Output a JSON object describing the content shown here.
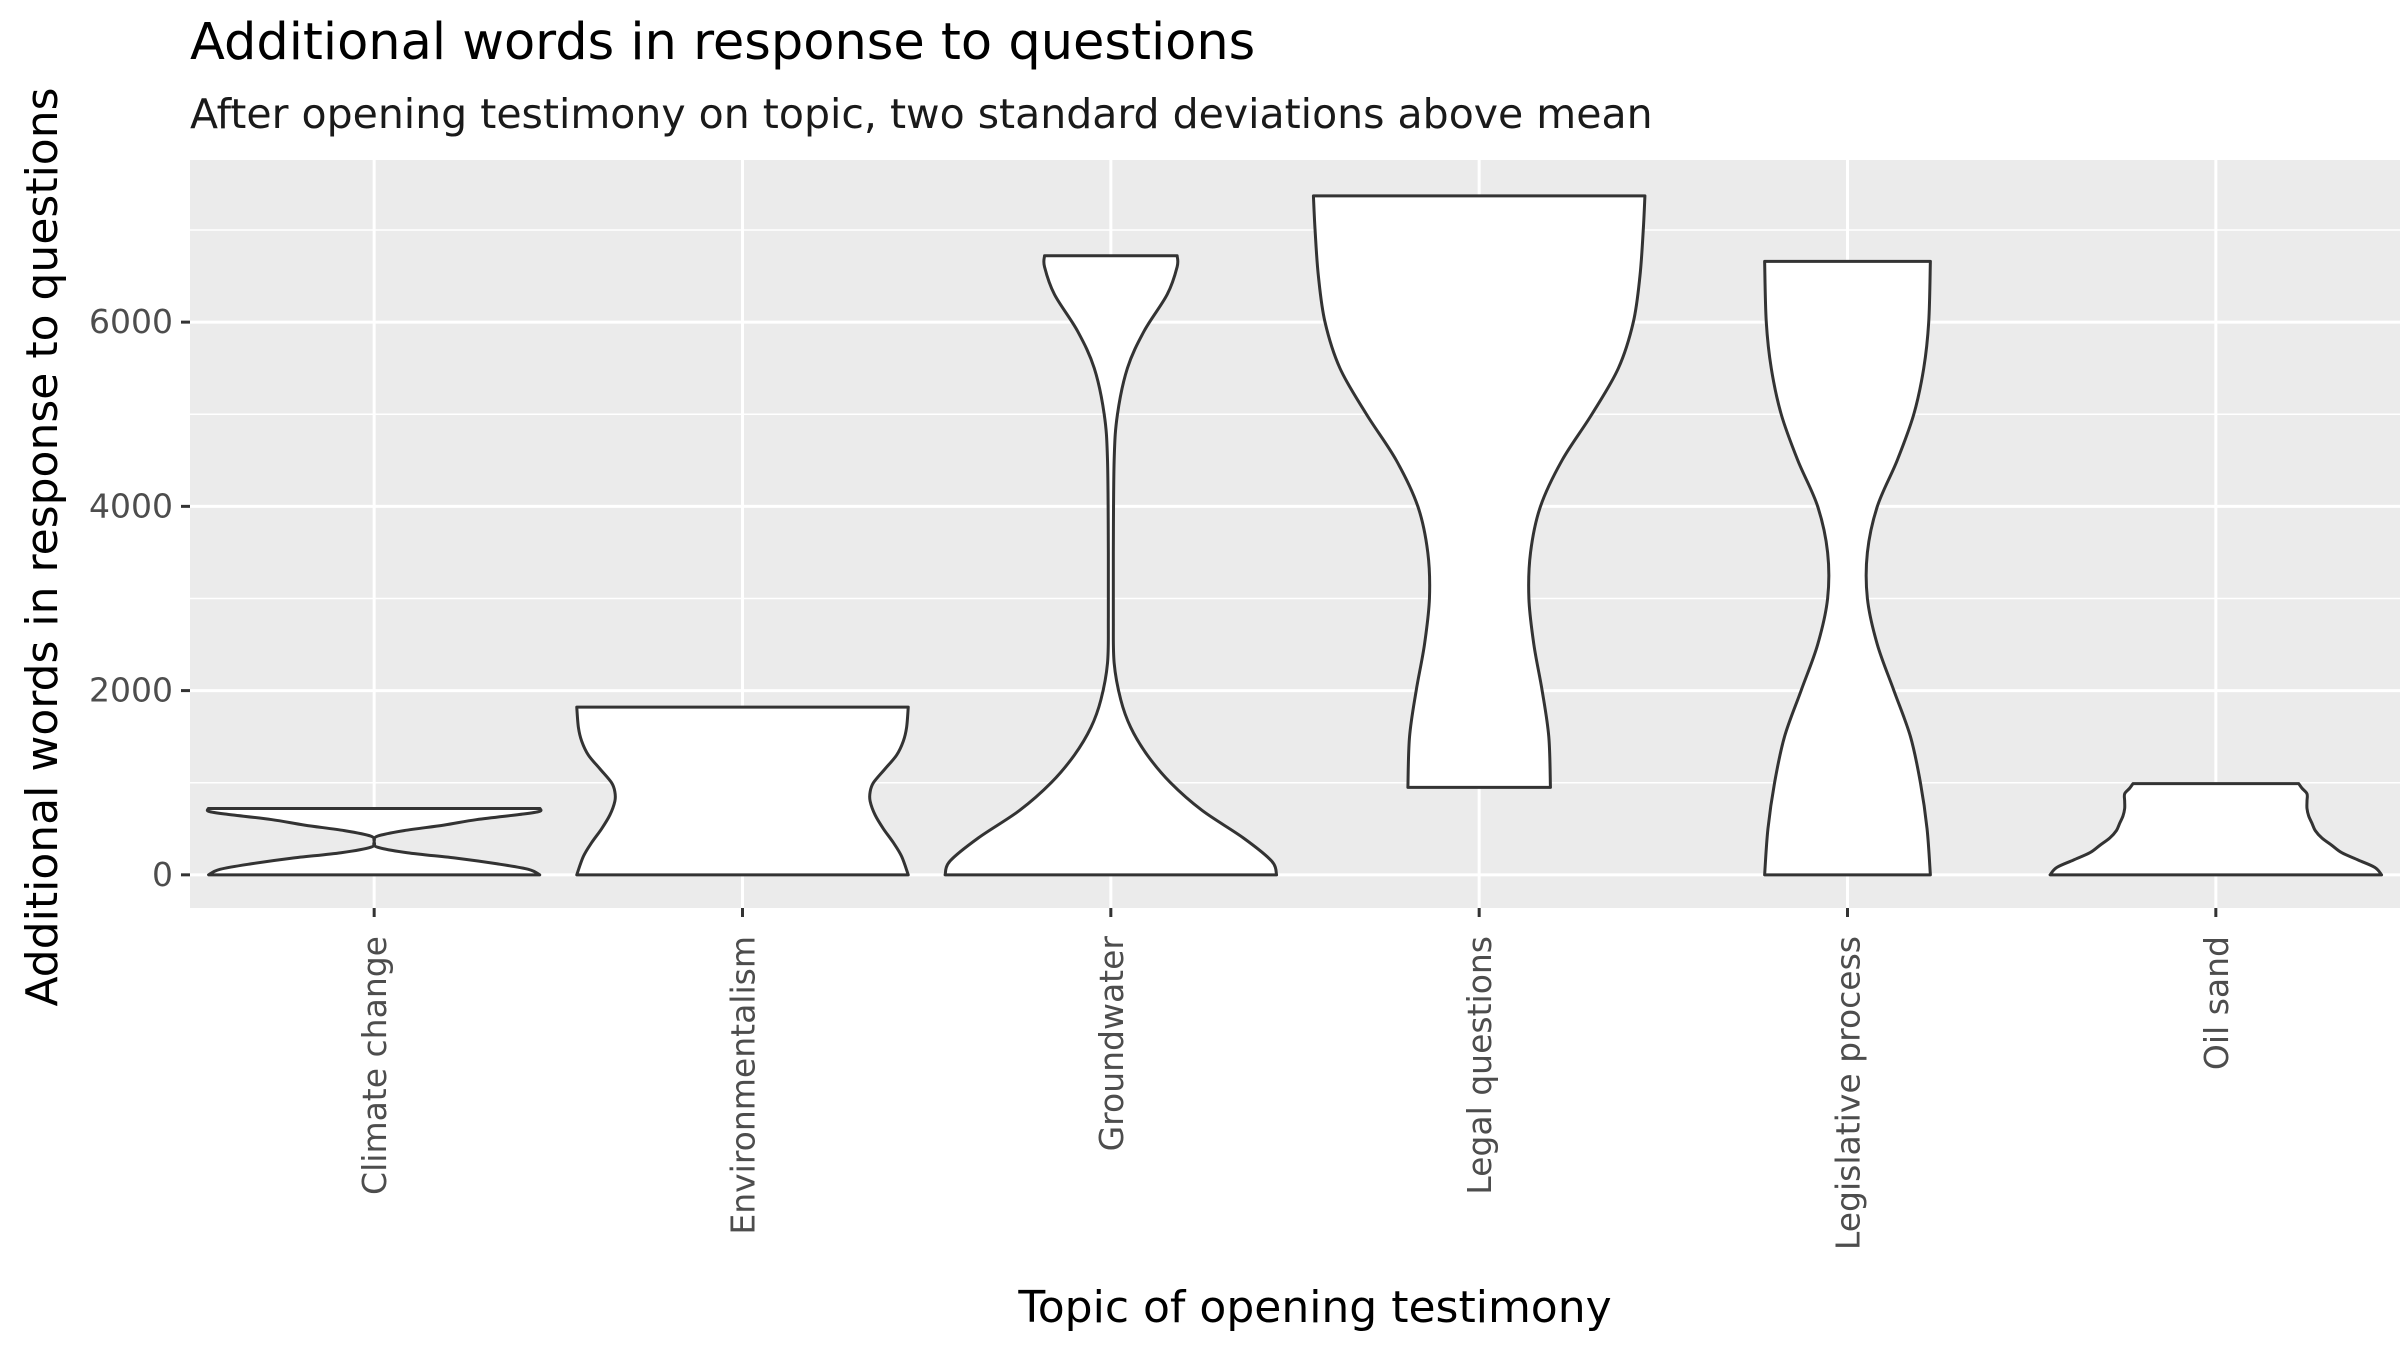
{
  "chart_data": {
    "type": "violin",
    "title": "Additional words in response to questions",
    "subtitle": "After opening testimony on topic, two standard deviations above mean",
    "xlabel": "Topic of opening testimony",
    "ylabel": "Additional words in response to questions",
    "categories": [
      "Climate change",
      "Environmentalism",
      "Groundwater",
      "Legal questions",
      "Legislative process",
      "Oil sand"
    ],
    "ylim": [
      -360,
      7760
    ],
    "y_ticks": [
      0,
      2000,
      4000,
      6000
    ],
    "y_tick_labels": [
      "0",
      "2000",
      "4000",
      "6000"
    ],
    "grid": true,
    "violins": [
      {
        "category": "Climate change",
        "min": 0,
        "max": 720,
        "profile": [
          [
            0,
            0.999
          ],
          [
            60,
            0.93
          ],
          [
            120,
            0.74
          ],
          [
            180,
            0.5
          ],
          [
            240,
            0.2
          ],
          [
            300,
            0.02
          ],
          [
            360,
            0
          ],
          [
            420,
            0.02
          ],
          [
            480,
            0.18
          ],
          [
            540,
            0.42
          ],
          [
            600,
            0.62
          ],
          [
            660,
            0.9
          ],
          [
            690,
            0.999
          ],
          [
            720,
            1.0
          ]
        ]
      },
      {
        "category": "Environmentalism",
        "min": 0,
        "max": 1820,
        "profile": [
          [
            0,
            1.0
          ],
          [
            200,
            0.96
          ],
          [
            350,
            0.91
          ],
          [
            500,
            0.85
          ],
          [
            650,
            0.8
          ],
          [
            800,
            0.77
          ],
          [
            900,
            0.77
          ],
          [
            1000,
            0.79
          ],
          [
            1150,
            0.86
          ],
          [
            1300,
            0.93
          ],
          [
            1450,
            0.97
          ],
          [
            1600,
            0.99
          ],
          [
            1820,
            1.0
          ]
        ]
      },
      {
        "category": "Groundwater",
        "min": 0,
        "max": 6720,
        "profile": [
          [
            0,
            1.0
          ],
          [
            150,
            0.97
          ],
          [
            400,
            0.8
          ],
          [
            700,
            0.55
          ],
          [
            1000,
            0.36
          ],
          [
            1300,
            0.22
          ],
          [
            1600,
            0.12
          ],
          [
            1900,
            0.06
          ],
          [
            2300,
            0.02
          ],
          [
            2800,
            0.015
          ],
          [
            3500,
            0.015
          ],
          [
            4500,
            0.02
          ],
          [
            5000,
            0.04
          ],
          [
            5500,
            0.1
          ],
          [
            5900,
            0.2
          ],
          [
            6300,
            0.34
          ],
          [
            6600,
            0.4
          ],
          [
            6720,
            0.4
          ]
        ]
      },
      {
        "category": "Legal questions",
        "min": 950,
        "max": 7370,
        "profile": [
          [
            950,
            0.43
          ],
          [
            1500,
            0.42
          ],
          [
            2000,
            0.38
          ],
          [
            2500,
            0.33
          ],
          [
            3000,
            0.3
          ],
          [
            3500,
            0.31
          ],
          [
            4000,
            0.37
          ],
          [
            4500,
            0.5
          ],
          [
            5000,
            0.68
          ],
          [
            5500,
            0.84
          ],
          [
            6000,
            0.93
          ],
          [
            6500,
            0.97
          ],
          [
            7000,
            0.99
          ],
          [
            7370,
            1.0
          ]
        ]
      },
      {
        "category": "Legislative process",
        "min": 0,
        "max": 6660,
        "profile": [
          [
            0,
            0.5
          ],
          [
            500,
            0.48
          ],
          [
            1000,
            0.44
          ],
          [
            1500,
            0.38
          ],
          [
            2000,
            0.28
          ],
          [
            2500,
            0.18
          ],
          [
            3000,
            0.12
          ],
          [
            3500,
            0.12
          ],
          [
            4000,
            0.18
          ],
          [
            4500,
            0.3
          ],
          [
            5000,
            0.4
          ],
          [
            5500,
            0.46
          ],
          [
            6000,
            0.49
          ],
          [
            6660,
            0.5
          ]
        ]
      },
      {
        "category": "Oil sand",
        "min": 0,
        "max": 990,
        "profile": [
          [
            0,
            1.0
          ],
          [
            80,
            0.96
          ],
          [
            160,
            0.86
          ],
          [
            240,
            0.76
          ],
          [
            320,
            0.7
          ],
          [
            400,
            0.64
          ],
          [
            480,
            0.6
          ],
          [
            560,
            0.58
          ],
          [
            640,
            0.56
          ],
          [
            720,
            0.55
          ],
          [
            800,
            0.55
          ],
          [
            880,
            0.55
          ],
          [
            940,
            0.52
          ],
          [
            990,
            0.5
          ]
        ]
      }
    ]
  }
}
